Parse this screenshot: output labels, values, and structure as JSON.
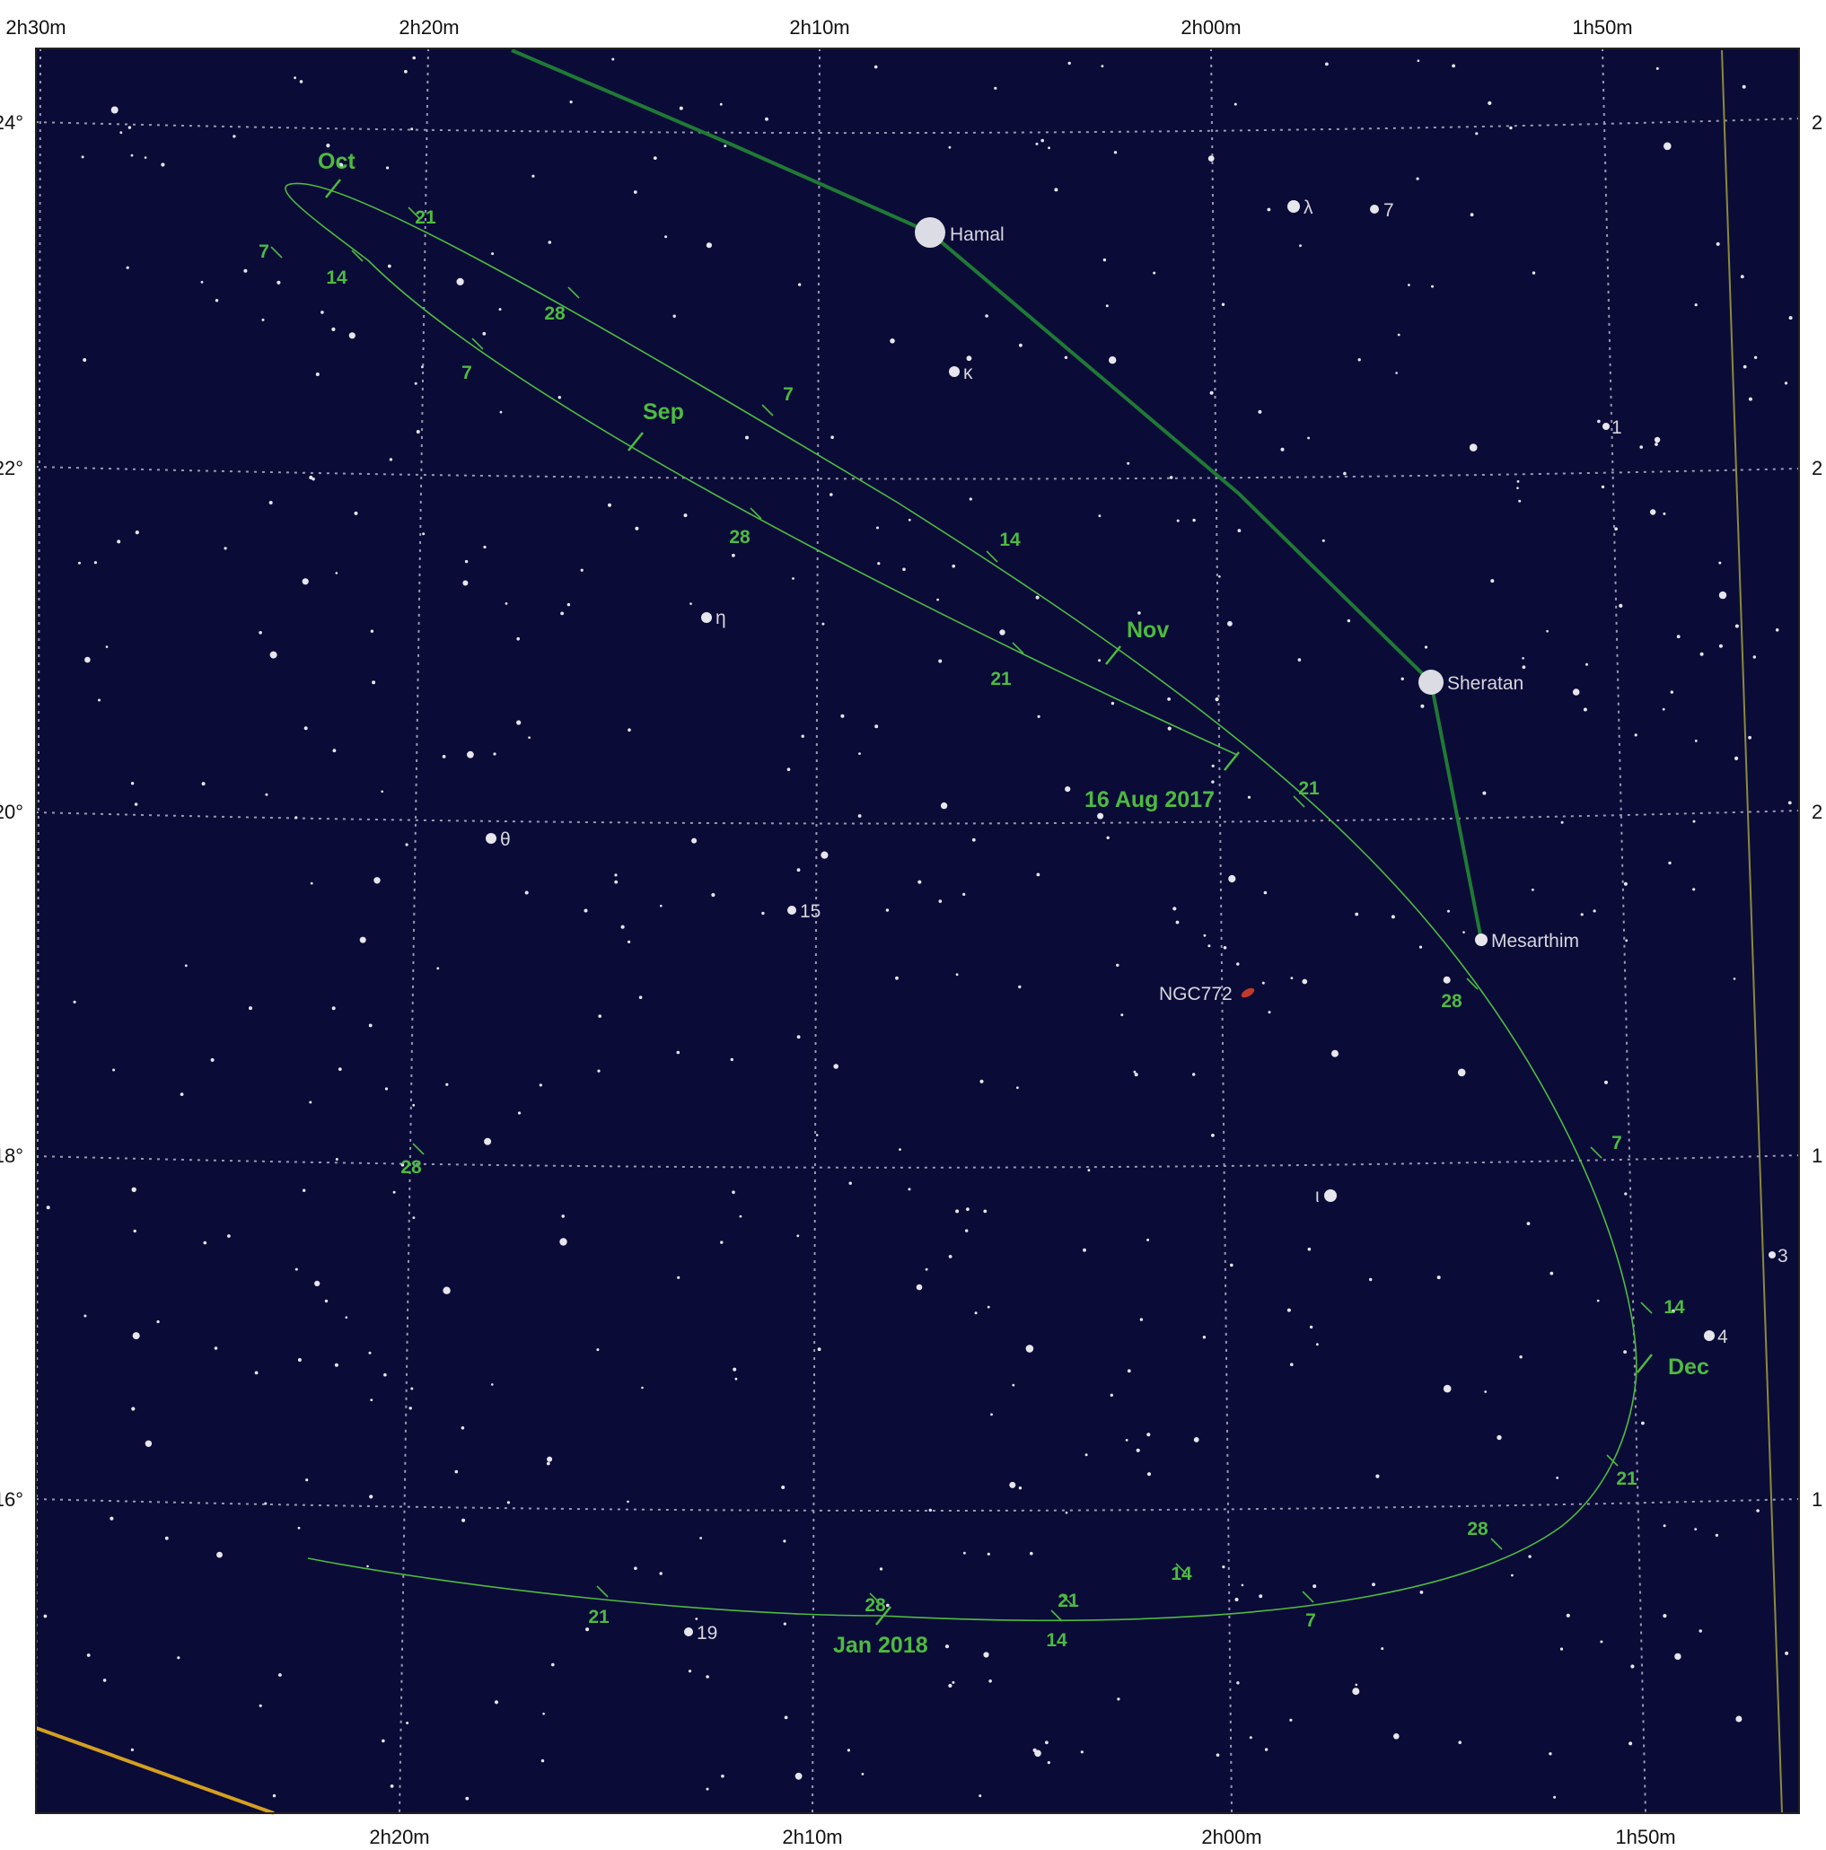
{
  "chart_data": {
    "type": "star-chart",
    "ra_axis": {
      "top_labels": [
        "2h30m",
        "2h20m",
        "2h10m",
        "2h00m",
        "1h50m"
      ],
      "bottom_labels": [
        "2h20m",
        "2h10m",
        "2h00m",
        "1h50m"
      ]
    },
    "dec_axis": {
      "left_labels": [
        "24°",
        "22°",
        "20°",
        "18°",
        "16°"
      ],
      "right_labels": [
        "2",
        "2",
        "2",
        "1",
        "1"
      ]
    },
    "constellation_lines": [
      [
        "Hamal",
        "Sheratan",
        "Mesarthim"
      ]
    ],
    "named_stars": [
      {
        "name": "Hamal",
        "magnitude_class": "brightest"
      },
      {
        "name": "Sheratan",
        "magnitude_class": "bright"
      },
      {
        "name": "Mesarthim",
        "magnitude_class": "medium"
      }
    ],
    "labeled_stars": [
      "λ",
      "7",
      "κ",
      "1",
      "η",
      "θ",
      "15",
      "ι",
      "3",
      "4",
      "19"
    ],
    "deep_sky": [
      {
        "name": "NGC772",
        "type": "galaxy",
        "color": "#c0392b"
      }
    ],
    "comet_path": {
      "start_label": "16 Aug 2017",
      "month_labels": [
        "Sep",
        "Oct",
        "Nov",
        "Dec",
        "Jan 2018"
      ],
      "day_ticks": [
        "21",
        "28",
        "7",
        "14",
        "21",
        "28",
        "7",
        "14",
        "21",
        "28",
        "7",
        "14",
        "21",
        "28",
        "7",
        "14",
        "21",
        "28",
        "7",
        "14",
        "21",
        "28"
      ]
    },
    "colors": {
      "background": "#0b0b38",
      "grid": "#9a9ab0",
      "constellation": "#1f7a34",
      "path": "#4dbb40",
      "labels": "#4dbb40",
      "stars": "#e6e6ec",
      "ecliptic": "#d4a020",
      "boundary": "#8a8a3a"
    }
  }
}
